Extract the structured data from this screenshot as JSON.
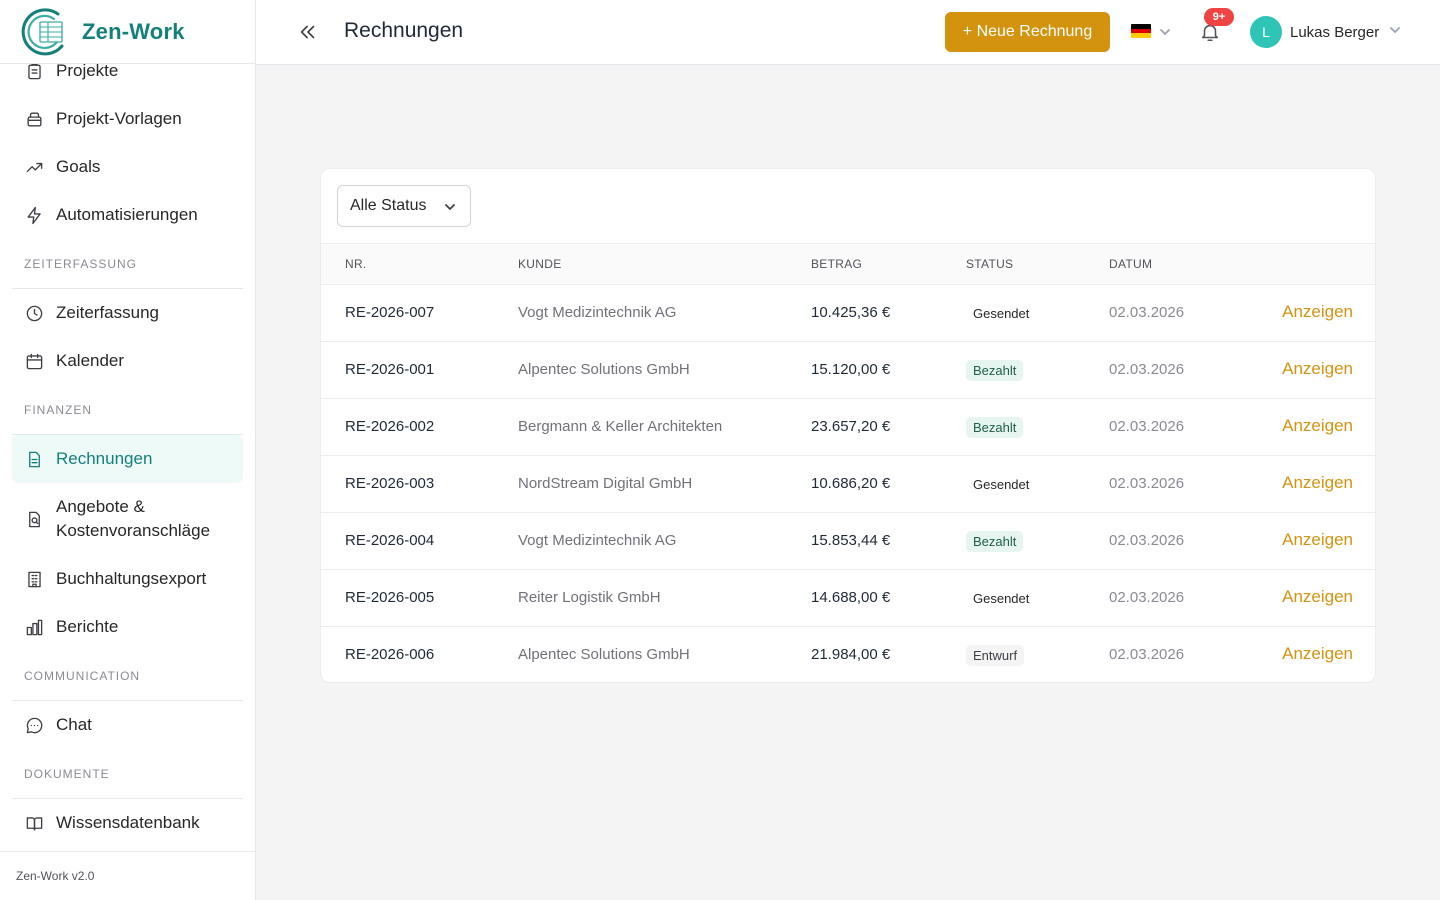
{
  "brand": {
    "name": "Zen-Work",
    "version": "Zen-Work v2.0",
    "accent": "#14807a"
  },
  "sidebar": {
    "group_top": [
      {
        "label": "Projekte",
        "icon": "clipboard-icon"
      },
      {
        "label": "Projekt-Vorlagen",
        "icon": "template-icon"
      },
      {
        "label": "Goals",
        "icon": "trending-up-icon"
      },
      {
        "label": "Automatisierungen",
        "icon": "lightning-icon"
      }
    ],
    "sections": {
      "zeiterfassung": "ZEITERFASSUNG",
      "finanzen": "FINANZEN",
      "communication": "COMMUNICATION",
      "dokumente": "DOKUMENTE"
    },
    "zeiterfassung_items": [
      {
        "label": "Zeiterfassung",
        "icon": "clock-icon"
      },
      {
        "label": "Kalender",
        "icon": "calendar-icon"
      }
    ],
    "finanzen_items": [
      {
        "label": "Rechnungen",
        "icon": "document-icon",
        "active": true
      },
      {
        "label": "Angebote & Kostenvoranschläge",
        "label_line1": "Angebote &",
        "label_line2": "Kostenvoranschläge",
        "icon": "quote-icon"
      },
      {
        "label": "Buchhaltungsexport",
        "icon": "building-icon"
      },
      {
        "label": "Berichte",
        "icon": "bar-chart-icon"
      }
    ],
    "communication_items": [
      {
        "label": "Chat",
        "icon": "chat-icon"
      }
    ],
    "dokumente_items": [
      {
        "label": "Wissensdatenbank",
        "icon": "book-icon"
      }
    ]
  },
  "header": {
    "title": "Rechnungen",
    "new_button": "+ Neue Rechnung",
    "notifications_badge": "9+",
    "user": {
      "initial": "L",
      "name": "Lukas Berger"
    },
    "button_color": "#d4930f"
  },
  "filter": {
    "selected": "Alle Status"
  },
  "table": {
    "columns": {
      "nr": "NR.",
      "kunde": "KUNDE",
      "betrag": "BETRAG",
      "status": "STATUS",
      "datum": "DATUM"
    },
    "action_label": "Anzeigen",
    "rows": [
      {
        "nr": "RE-2026-007",
        "kunde": "Vogt Medizintechnik AG",
        "betrag": "10.425,36 €",
        "status": "Gesendet",
        "datum": "02.03.2026"
      },
      {
        "nr": "RE-2026-001",
        "kunde": "Alpentec Solutions GmbH",
        "betrag": "15.120,00 €",
        "status": "Bezahlt",
        "datum": "02.03.2026"
      },
      {
        "nr": "RE-2026-002",
        "kunde": "Bergmann & Keller Architekten",
        "betrag": "23.657,20 €",
        "status": "Bezahlt",
        "datum": "02.03.2026"
      },
      {
        "nr": "RE-2026-003",
        "kunde": "NordStream Digital GmbH",
        "betrag": "10.686,20 €",
        "status": "Gesendet",
        "datum": "02.03.2026"
      },
      {
        "nr": "RE-2026-004",
        "kunde": "Vogt Medizintechnik AG",
        "betrag": "15.853,44 €",
        "status": "Bezahlt",
        "datum": "02.03.2026"
      },
      {
        "nr": "RE-2026-005",
        "kunde": "Reiter Logistik GmbH",
        "betrag": "14.688,00 €",
        "status": "Gesendet",
        "datum": "02.03.2026"
      },
      {
        "nr": "RE-2026-006",
        "kunde": "Alpentec Solutions GmbH",
        "betrag": "21.984,00 €",
        "status": "Entwurf",
        "datum": "02.03.2026"
      }
    ]
  }
}
